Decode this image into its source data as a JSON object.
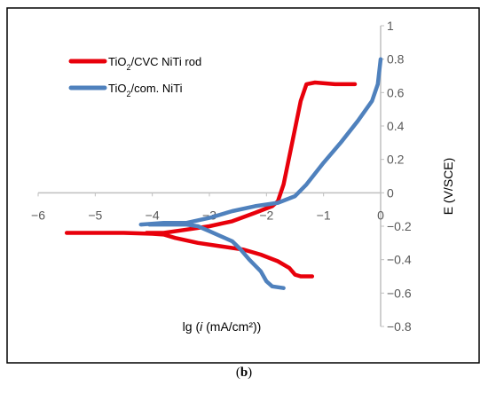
{
  "chart_data": {
    "type": "line",
    "x_axis": {
      "min": -6,
      "max": 0,
      "step": 1,
      "tick_labels": [
        "−6",
        "−5",
        "−4",
        "−3",
        "−2",
        "−1",
        "0"
      ]
    },
    "y_axis": {
      "min": -0.8,
      "max": 1,
      "step": 0.2,
      "tick_labels": [
        "−0.8",
        "−0.6",
        "−0.4",
        "−0.2",
        "0",
        "0.2",
        "0.4",
        "0.6",
        "0.8",
        "1"
      ]
    },
    "xlabel_prefix": "lg (",
    "xlabel_var": "i",
    "xlabel_suffix": " (mA/cm²))",
    "ylabel": "E (V/SCE)",
    "grid": false,
    "legend_position": "top-left",
    "series": [
      {
        "name": "TiO2/CVC NiTi rod",
        "name_base": "TiO",
        "name_sub": "2",
        "name_rest": "/CVC NiTi rod",
        "color": "#e8000b",
        "cathodic": [
          [
            -5.5,
            -0.24
          ],
          [
            -5.0,
            -0.24
          ],
          [
            -4.5,
            -0.24
          ],
          [
            -4.0,
            -0.245
          ],
          [
            -3.8,
            -0.25
          ],
          [
            -3.6,
            -0.27
          ],
          [
            -3.2,
            -0.3
          ],
          [
            -2.8,
            -0.32
          ],
          [
            -2.4,
            -0.34
          ],
          [
            -2.1,
            -0.37
          ],
          [
            -1.8,
            -0.41
          ],
          [
            -1.6,
            -0.45
          ],
          [
            -1.5,
            -0.49
          ],
          [
            -1.4,
            -0.5
          ],
          [
            -1.2,
            -0.5
          ]
        ],
        "anodic": [
          [
            -4.1,
            -0.24
          ],
          [
            -3.8,
            -0.24
          ],
          [
            -3.4,
            -0.22
          ],
          [
            -3.0,
            -0.2
          ],
          [
            -2.6,
            -0.17
          ],
          [
            -2.2,
            -0.12
          ],
          [
            -1.9,
            -0.08
          ],
          [
            -1.8,
            -0.05
          ],
          [
            -1.7,
            0.05
          ],
          [
            -1.55,
            0.3
          ],
          [
            -1.4,
            0.55
          ],
          [
            -1.3,
            0.65
          ],
          [
            -1.15,
            0.66
          ],
          [
            -0.8,
            0.65
          ],
          [
            -0.45,
            0.65
          ]
        ]
      },
      {
        "name": "TiO2/com. NiTi",
        "name_base": "TiO",
        "name_sub": "2",
        "name_rest": "/com. NiTi",
        "color": "#4f81bd",
        "cathodic": [
          [
            -4.05,
            -0.19
          ],
          [
            -3.8,
            -0.19
          ],
          [
            -3.4,
            -0.19
          ],
          [
            -3.2,
            -0.2
          ],
          [
            -3.0,
            -0.23
          ],
          [
            -2.8,
            -0.26
          ],
          [
            -2.6,
            -0.29
          ],
          [
            -2.45,
            -0.34
          ],
          [
            -2.3,
            -0.4
          ],
          [
            -2.1,
            -0.47
          ],
          [
            -2.0,
            -0.53
          ],
          [
            -1.9,
            -0.56
          ],
          [
            -1.7,
            -0.57
          ]
        ],
        "anodic": [
          [
            -4.2,
            -0.19
          ],
          [
            -3.8,
            -0.18
          ],
          [
            -3.4,
            -0.18
          ],
          [
            -3.0,
            -0.15
          ],
          [
            -2.6,
            -0.11
          ],
          [
            -2.2,
            -0.08
          ],
          [
            -1.8,
            -0.06
          ],
          [
            -1.5,
            -0.02
          ],
          [
            -1.3,
            0.05
          ],
          [
            -1.0,
            0.18
          ],
          [
            -0.7,
            0.3
          ],
          [
            -0.4,
            0.43
          ],
          [
            -0.15,
            0.55
          ],
          [
            -0.05,
            0.65
          ],
          [
            0.0,
            0.8
          ]
        ]
      }
    ]
  },
  "caption": {
    "label": "b"
  }
}
